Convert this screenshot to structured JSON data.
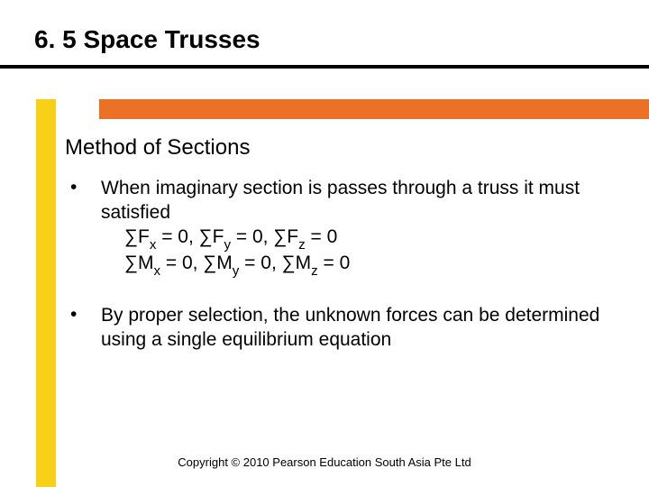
{
  "slide": {
    "title": "6. 5 Space Trusses",
    "subtitle": "Method of Sections",
    "bullets": [
      {
        "text": "When imaginary section is passes through a truss it must satisfied",
        "eq1_html": "∑F<span class=\"sub\">x</span> = 0, ∑F<span class=\"sub\">y</span> = 0, ∑F<span class=\"sub\">z</span> = 0",
        "eq2_html": "∑M<span class=\"sub\">x</span> = 0, ∑M<span class=\"sub\">y</span> = 0, ∑M<span class=\"sub\">z</span> = 0"
      },
      {
        "text": "By proper selection, the unknown forces can be determined using a single equilibrium equation"
      }
    ],
    "copyright": "Copyright © 2010 Pearson Education South Asia Pte Ltd"
  },
  "style": {
    "accent_orange": "#ea7125",
    "accent_yellow": "#f7d117",
    "title_fontsize": 28,
    "subtitle_fontsize": 24,
    "body_fontsize": 21,
    "copyright_fontsize": 13
  }
}
